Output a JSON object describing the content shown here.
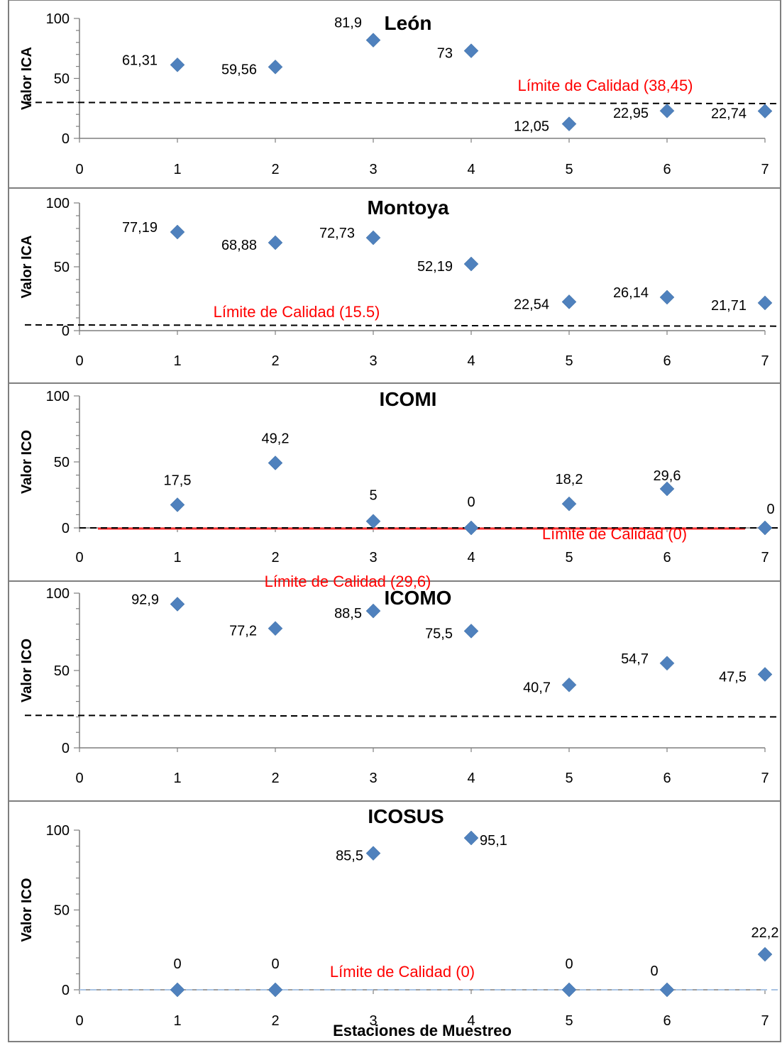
{
  "colors": {
    "marker": "#4f81bd",
    "limit_text": "#ff0000",
    "axis": "#7f7f7f"
  },
  "chart_data": [
    {
      "type": "scatter",
      "title": "León",
      "ylabel": "Valor ICA",
      "xlabel": "",
      "xlim": [
        0,
        7
      ],
      "ylim": [
        0,
        100
      ],
      "xticks": [
        "0",
        "1",
        "2",
        "3",
        "4",
        "5",
        "6",
        "7"
      ],
      "yticks": [
        "0",
        "50",
        "100"
      ],
      "x": [
        1,
        2,
        3,
        4,
        5,
        6,
        7
      ],
      "y": [
        61.31,
        59.56,
        81.9,
        73,
        12.05,
        22.95,
        22.74
      ],
      "point_labels": [
        "61,31",
        "59,56",
        "81,9",
        "73",
        "12,05",
        "22,95",
        "22,74"
      ],
      "limit_label": "Límite de Calidad  (38,45)",
      "limit_line": {
        "style": "dashed-black",
        "y_start": 30,
        "y_end": 29
      }
    },
    {
      "type": "scatter",
      "title": "Montoya",
      "ylabel": "Valor ICA",
      "xlabel": "",
      "xlim": [
        0,
        7
      ],
      "ylim": [
        0,
        100
      ],
      "xticks": [
        "0",
        "1",
        "2",
        "3",
        "4",
        "5",
        "6",
        "7"
      ],
      "yticks": [
        "0",
        "50",
        "100"
      ],
      "x": [
        1,
        2,
        3,
        4,
        5,
        6,
        7
      ],
      "y": [
        77.19,
        68.88,
        72.73,
        52.19,
        22.54,
        26.14,
        21.71
      ],
      "point_labels": [
        "77,19",
        "68,88",
        "72,73",
        "52,19",
        "22,54",
        "26,14",
        "21,71"
      ],
      "limit_label": "Límite de Calidad  (15.5)",
      "limit_line": {
        "style": "dashed-black",
        "y_start": 4.5,
        "y_end": 3.5
      }
    },
    {
      "type": "scatter",
      "title": "ICOMI",
      "ylabel": "Valor ICO",
      "xlabel": "",
      "xlim": [
        0,
        7
      ],
      "ylim": [
        0,
        100
      ],
      "xticks": [
        "0",
        "1",
        "2",
        "3",
        "4",
        "5",
        "6",
        "7"
      ],
      "yticks": [
        "0",
        "50",
        "100"
      ],
      "x": [
        1,
        2,
        3,
        4,
        5,
        6,
        7
      ],
      "y": [
        17.5,
        49.2,
        5,
        0,
        18.2,
        29.6,
        0
      ],
      "point_labels": [
        "17,5",
        "49,2",
        "5",
        "0",
        "18,2",
        "29,6",
        "0"
      ],
      "limit_label": "Límite de Calidad  (0)",
      "limit_line": {
        "style": "dashed-black-red-glow",
        "y_start": 0,
        "y_end": 0
      }
    },
    {
      "type": "scatter",
      "title": "ICOMO",
      "ylabel": "Valor ICO",
      "xlabel": "",
      "xlim": [
        0,
        7
      ],
      "ylim": [
        0,
        100
      ],
      "xticks": [
        "0",
        "1",
        "2",
        "3",
        "4",
        "5",
        "6",
        "7"
      ],
      "yticks": [
        "0",
        "50",
        "100"
      ],
      "x": [
        1,
        2,
        3,
        4,
        5,
        6,
        7
      ],
      "y": [
        92.9,
        77.2,
        88.5,
        75.5,
        40.7,
        54.7,
        47.5
      ],
      "point_labels": [
        "92,9",
        "77,2",
        "88,5",
        "75,5",
        "40,7",
        "54,7",
        "47,5"
      ],
      "limit_label": "Límite de Calidad  (29,6)",
      "limit_line": {
        "style": "dashed-black",
        "y_start": 21,
        "y_end": 20
      }
    },
    {
      "type": "scatter",
      "title": "ICOSUS",
      "ylabel": "Valor ICO",
      "xlabel": "Estaciones de Muestreo",
      "xlim": [
        0,
        7
      ],
      "ylim": [
        0,
        100
      ],
      "xticks": [
        "0",
        "1",
        "2",
        "3",
        "4",
        "5",
        "6",
        "7"
      ],
      "yticks": [
        "0",
        "50",
        "100"
      ],
      "x": [
        1,
        2,
        3,
        4,
        5,
        6,
        7
      ],
      "y": [
        0,
        0,
        85.5,
        95.1,
        0,
        0,
        22.2
      ],
      "point_labels": [
        "0",
        "0",
        "85,5",
        "95,1",
        "0",
        "0",
        "22,2"
      ],
      "limit_label": "Límite de Calidad (0)",
      "limit_line": {
        "style": "dashed-light-blue",
        "y_start": 0,
        "y_end": 0
      }
    }
  ]
}
